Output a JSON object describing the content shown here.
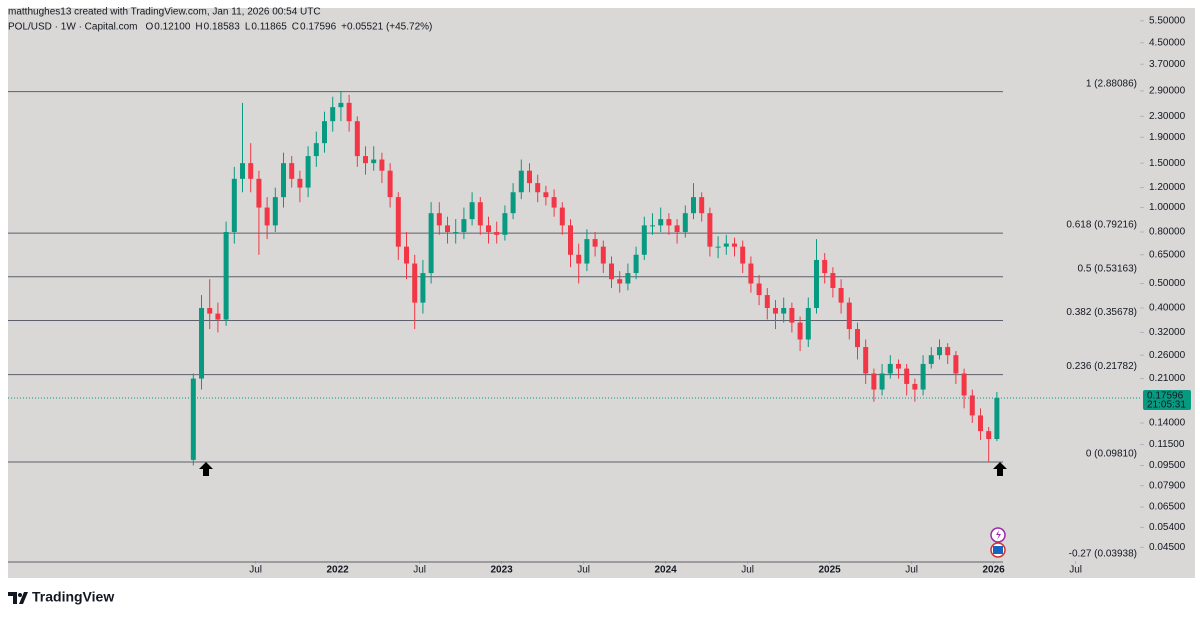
{
  "header": "matthughes13 created with TradingView.com, Jan 11, 2026 00:54 UTC",
  "footer": "TradingView",
  "chart_data": {
    "type": "candlestick",
    "symbol": "POL/USD · 1W · Capital.com",
    "legend": [
      {
        "key": "O",
        "label": "0.12100"
      },
      {
        "key": "H",
        "label": "0.18583"
      },
      {
        "key": "L",
        "label": "0.11865"
      },
      {
        "key": "C",
        "label": "0.17596"
      }
    ],
    "change": "+0.05521 (+45.72%)",
    "up_color": "#089981",
    "down_color": "#f23645",
    "log_scale": true,
    "xlim": [
      2019.99,
      2026.85
    ],
    "xticks": [
      {
        "value": 2021.5,
        "label": "Jul"
      },
      2022,
      {
        "value": 2022.5,
        "label": "Jul"
      },
      2023,
      {
        "value": 2023.5,
        "label": "Jul"
      },
      2024,
      {
        "value": 2024.5,
        "label": "Jul"
      },
      2025,
      {
        "value": 2025.5,
        "label": "Jul"
      },
      2026,
      {
        "value": 2026.5,
        "label": "Jul"
      }
    ],
    "ylim": [
      0.0401,
      6.18
    ],
    "yticks": [
      {
        "value": 5.5,
        "label": "5.50000"
      },
      {
        "value": 4.5,
        "label": "4.50000"
      },
      {
        "value": 3.7,
        "label": "3.70000"
      },
      {
        "value": 2.9,
        "label": "2.90000"
      },
      {
        "value": 2.3,
        "label": "2.30000"
      },
      {
        "value": 1.9,
        "label": "1.90000"
      },
      {
        "value": 1.5,
        "label": "1.50000"
      },
      {
        "value": 1.2,
        "label": "1.20000"
      },
      {
        "value": 1.0,
        "label": "1.00000"
      },
      {
        "value": 0.8,
        "label": "0.80000"
      },
      {
        "value": 0.65,
        "label": "0.65000"
      },
      {
        "value": 0.5,
        "label": "0.50000"
      },
      {
        "value": 0.4,
        "label": "0.40000"
      },
      {
        "value": 0.32,
        "label": "0.32000"
      },
      {
        "value": 0.26,
        "label": "0.26000"
      },
      {
        "value": 0.21,
        "label": "0.21000"
      },
      {
        "value": 0.14,
        "label": "0.14000"
      },
      {
        "value": 0.115,
        "label": "0.11500"
      },
      {
        "value": 0.095,
        "label": "0.09500"
      },
      {
        "value": 0.079,
        "label": "0.07900"
      },
      {
        "value": 0.065,
        "label": "0.06500"
      },
      {
        "value": 0.054,
        "label": "0.05400"
      },
      {
        "value": 0.045,
        "label": "0.04500"
      }
    ],
    "levels": [
      {
        "label": "1 (2.88086)",
        "value": 2.88086,
        "color": "#787b86"
      },
      {
        "label": "0.618 (0.79216)",
        "value": 0.79216,
        "color": "#787b86"
      },
      {
        "label": "0.5 (0.53163)",
        "value": 0.53163,
        "color": "#787b86"
      },
      {
        "label": "0.382 (0.35678)",
        "value": 0.35678,
        "color": "#787b86"
      },
      {
        "label": "0.236 (0.21782)",
        "value": 0.21782,
        "color": "#787b86"
      },
      {
        "label": "0 (0.09810)",
        "value": 0.0981,
        "color": "#787b86"
      },
      {
        "label": "-0.27 (0.03938)",
        "value": 0.03938,
        "color": "#f7a21b"
      }
    ],
    "last_price": 0.17596,
    "countdown": "21:05:31",
    "x": [
      2021.12,
      2021.17,
      2021.22,
      2021.27,
      2021.32,
      2021.37,
      2021.42,
      2021.47,
      2021.52,
      2021.57,
      2021.62,
      2021.67,
      2021.72,
      2021.77,
      2021.82,
      2021.87,
      2021.92,
      2021.97,
      2022.02,
      2022.07,
      2022.12,
      2022.17,
      2022.22,
      2022.27,
      2022.32,
      2022.37,
      2022.42,
      2022.47,
      2022.52,
      2022.57,
      2022.62,
      2022.67,
      2022.72,
      2022.77,
      2022.82,
      2022.87,
      2022.92,
      2022.97,
      2023.02,
      2023.07,
      2023.12,
      2023.17,
      2023.22,
      2023.27,
      2023.32,
      2023.37,
      2023.42,
      2023.47,
      2023.52,
      2023.57,
      2023.62,
      2023.67,
      2023.72,
      2023.77,
      2023.82,
      2023.87,
      2023.92,
      2023.97,
      2024.02,
      2024.07,
      2024.12,
      2024.17,
      2024.22,
      2024.27,
      2024.32,
      2024.37,
      2024.42,
      2024.47,
      2024.52,
      2024.57,
      2024.62,
      2024.67,
      2024.72,
      2024.77,
      2024.82,
      2024.87,
      2024.92,
      2024.97,
      2025.02,
      2025.07,
      2025.12,
      2025.17,
      2025.22,
      2025.27,
      2025.32,
      2025.37,
      2025.42,
      2025.47,
      2025.52,
      2025.57,
      2025.62,
      2025.67,
      2025.72,
      2025.77,
      2025.82,
      2025.87,
      2025.92,
      2025.97,
      2026.02
    ],
    "ohlc": [
      [
        0.1,
        0.22,
        0.095,
        0.21
      ],
      [
        0.21,
        0.45,
        0.19,
        0.4
      ],
      [
        0.4,
        0.52,
        0.33,
        0.38
      ],
      [
        0.38,
        0.42,
        0.32,
        0.36
      ],
      [
        0.36,
        0.88,
        0.34,
        0.8
      ],
      [
        0.8,
        1.45,
        0.72,
        1.3
      ],
      [
        1.3,
        2.6,
        1.15,
        1.5
      ],
      [
        1.5,
        1.8,
        1.15,
        1.3
      ],
      [
        1.3,
        1.4,
        0.65,
        1.0
      ],
      [
        1.0,
        1.1,
        0.75,
        0.85
      ],
      [
        0.85,
        1.2,
        0.8,
        1.1
      ],
      [
        1.1,
        1.65,
        1.0,
        1.5
      ],
      [
        1.5,
        1.6,
        1.2,
        1.3
      ],
      [
        1.3,
        1.4,
        1.05,
        1.2
      ],
      [
        1.2,
        1.75,
        1.1,
        1.6
      ],
      [
        1.6,
        2.0,
        1.45,
        1.8
      ],
      [
        1.8,
        2.4,
        1.65,
        2.2
      ],
      [
        2.2,
        2.75,
        2.0,
        2.5
      ],
      [
        2.5,
        2.9,
        2.2,
        2.6
      ],
      [
        2.6,
        2.8,
        2.0,
        2.2
      ],
      [
        2.2,
        2.3,
        1.45,
        1.6
      ],
      [
        1.6,
        1.75,
        1.35,
        1.5
      ],
      [
        1.5,
        1.75,
        1.4,
        1.55
      ],
      [
        1.55,
        1.65,
        1.25,
        1.4
      ],
      [
        1.4,
        1.5,
        1.0,
        1.1
      ],
      [
        1.1,
        1.15,
        0.62,
        0.7
      ],
      [
        0.7,
        0.8,
        0.52,
        0.6
      ],
      [
        0.6,
        0.65,
        0.33,
        0.42
      ],
      [
        0.42,
        0.62,
        0.38,
        0.55
      ],
      [
        0.55,
        1.05,
        0.5,
        0.95
      ],
      [
        0.95,
        1.05,
        0.78,
        0.85
      ],
      [
        0.85,
        0.92,
        0.72,
        0.8
      ],
      [
        0.8,
        0.9,
        0.72,
        0.8
      ],
      [
        0.8,
        1.0,
        0.75,
        0.9
      ],
      [
        0.9,
        1.15,
        0.85,
        1.05
      ],
      [
        1.05,
        1.1,
        0.78,
        0.85
      ],
      [
        0.85,
        0.92,
        0.72,
        0.8
      ],
      [
        0.8,
        0.88,
        0.72,
        0.78
      ],
      [
        0.78,
        1.02,
        0.74,
        0.95
      ],
      [
        0.95,
        1.25,
        0.9,
        1.15
      ],
      [
        1.15,
        1.55,
        1.08,
        1.4
      ],
      [
        1.4,
        1.5,
        1.15,
        1.25
      ],
      [
        1.25,
        1.35,
        1.05,
        1.15
      ],
      [
        1.15,
        1.22,
        1.02,
        1.1
      ],
      [
        1.1,
        1.18,
        0.92,
        1.0
      ],
      [
        1.0,
        1.05,
        0.78,
        0.85
      ],
      [
        0.85,
        0.9,
        0.58,
        0.65
      ],
      [
        0.65,
        0.72,
        0.5,
        0.6
      ],
      [
        0.6,
        0.82,
        0.56,
        0.75
      ],
      [
        0.75,
        0.8,
        0.64,
        0.7
      ],
      [
        0.7,
        0.74,
        0.55,
        0.6
      ],
      [
        0.6,
        0.64,
        0.48,
        0.52
      ],
      [
        0.52,
        0.56,
        0.46,
        0.5
      ],
      [
        0.5,
        0.6,
        0.47,
        0.55
      ],
      [
        0.55,
        0.7,
        0.52,
        0.65
      ],
      [
        0.65,
        0.92,
        0.62,
        0.85
      ],
      [
        0.85,
        0.95,
        0.78,
        0.85
      ],
      [
        0.85,
        1.0,
        0.8,
        0.9
      ],
      [
        0.9,
        0.95,
        0.78,
        0.85
      ],
      [
        0.85,
        0.9,
        0.72,
        0.8
      ],
      [
        0.8,
        1.02,
        0.76,
        0.95
      ],
      [
        0.95,
        1.25,
        0.9,
        1.1
      ],
      [
        1.1,
        1.15,
        0.88,
        0.95
      ],
      [
        0.95,
        1.0,
        0.64,
        0.7
      ],
      [
        0.7,
        0.77,
        0.63,
        0.7
      ],
      [
        0.7,
        0.78,
        0.65,
        0.72
      ],
      [
        0.72,
        0.76,
        0.64,
        0.7
      ],
      [
        0.7,
        0.74,
        0.55,
        0.6
      ],
      [
        0.6,
        0.64,
        0.46,
        0.5
      ],
      [
        0.5,
        0.54,
        0.41,
        0.45
      ],
      [
        0.45,
        0.48,
        0.36,
        0.4
      ],
      [
        0.4,
        0.43,
        0.33,
        0.38
      ],
      [
        0.38,
        0.44,
        0.35,
        0.4
      ],
      [
        0.4,
        0.42,
        0.32,
        0.35
      ],
      [
        0.35,
        0.37,
        0.27,
        0.3
      ],
      [
        0.3,
        0.44,
        0.28,
        0.4
      ],
      [
        0.4,
        0.75,
        0.38,
        0.62
      ],
      [
        0.62,
        0.66,
        0.5,
        0.55
      ],
      [
        0.55,
        0.58,
        0.44,
        0.48
      ],
      [
        0.48,
        0.52,
        0.38,
        0.42
      ],
      [
        0.42,
        0.44,
        0.3,
        0.33
      ],
      [
        0.33,
        0.35,
        0.25,
        0.28
      ],
      [
        0.28,
        0.3,
        0.2,
        0.22
      ],
      [
        0.22,
        0.23,
        0.17,
        0.19
      ],
      [
        0.19,
        0.24,
        0.18,
        0.22
      ],
      [
        0.22,
        0.26,
        0.21,
        0.24
      ],
      [
        0.24,
        0.25,
        0.21,
        0.23
      ],
      [
        0.23,
        0.24,
        0.18,
        0.2
      ],
      [
        0.2,
        0.21,
        0.17,
        0.19
      ],
      [
        0.19,
        0.26,
        0.18,
        0.24
      ],
      [
        0.24,
        0.28,
        0.23,
        0.26
      ],
      [
        0.26,
        0.3,
        0.25,
        0.28
      ],
      [
        0.28,
        0.29,
        0.24,
        0.26
      ],
      [
        0.26,
        0.27,
        0.2,
        0.22
      ],
      [
        0.22,
        0.23,
        0.16,
        0.18
      ],
      [
        0.18,
        0.19,
        0.14,
        0.15
      ],
      [
        0.15,
        0.16,
        0.12,
        0.13
      ],
      [
        0.13,
        0.135,
        0.098,
        0.121
      ],
      [
        0.121,
        0.18583,
        0.11865,
        0.17596
      ]
    ]
  }
}
